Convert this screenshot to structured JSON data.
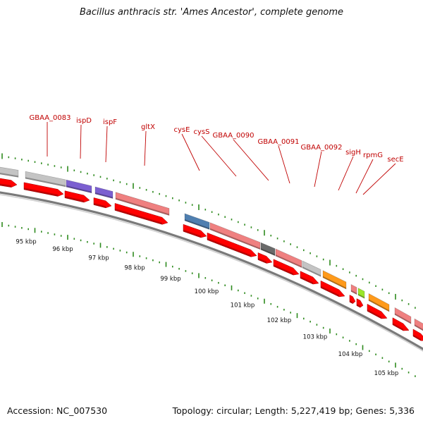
{
  "title": "Bacillus anthracis str. 'Ames Ancestor', complete genome",
  "footer": {
    "accession": "Accession: NC_007530",
    "summary": "Topology: circular; Length: 5,227,419 bp; Genes: 5,336"
  },
  "colors": {
    "label": "#c00000",
    "tick": "#2e8b1e",
    "cds": "#ff0000",
    "grey": "#c4c4c4",
    "purple": "#7b5fd0",
    "pink": "#ef8080",
    "blue": "#4f7fb0",
    "dark": "#6a6a6a",
    "orange": "#ff9a1a",
    "lime": "#9ae62a"
  },
  "gene_labels": [
    "GBAA_0083",
    "ispD",
    "ispF",
    "gltX",
    "cysE",
    "cysS",
    "GBAA_0090",
    "GBAA_0091",
    "GBAA_0092",
    "sigH",
    "rpmG",
    "secE"
  ],
  "scale_labels": [
    "95 kbp",
    "96 kbp",
    "97 kbp",
    "98 kbp",
    "99 kbp",
    "100 kbp",
    "101 kbp",
    "102 kbp",
    "103 kbp",
    "104 kbp",
    "105 kbp"
  ]
}
